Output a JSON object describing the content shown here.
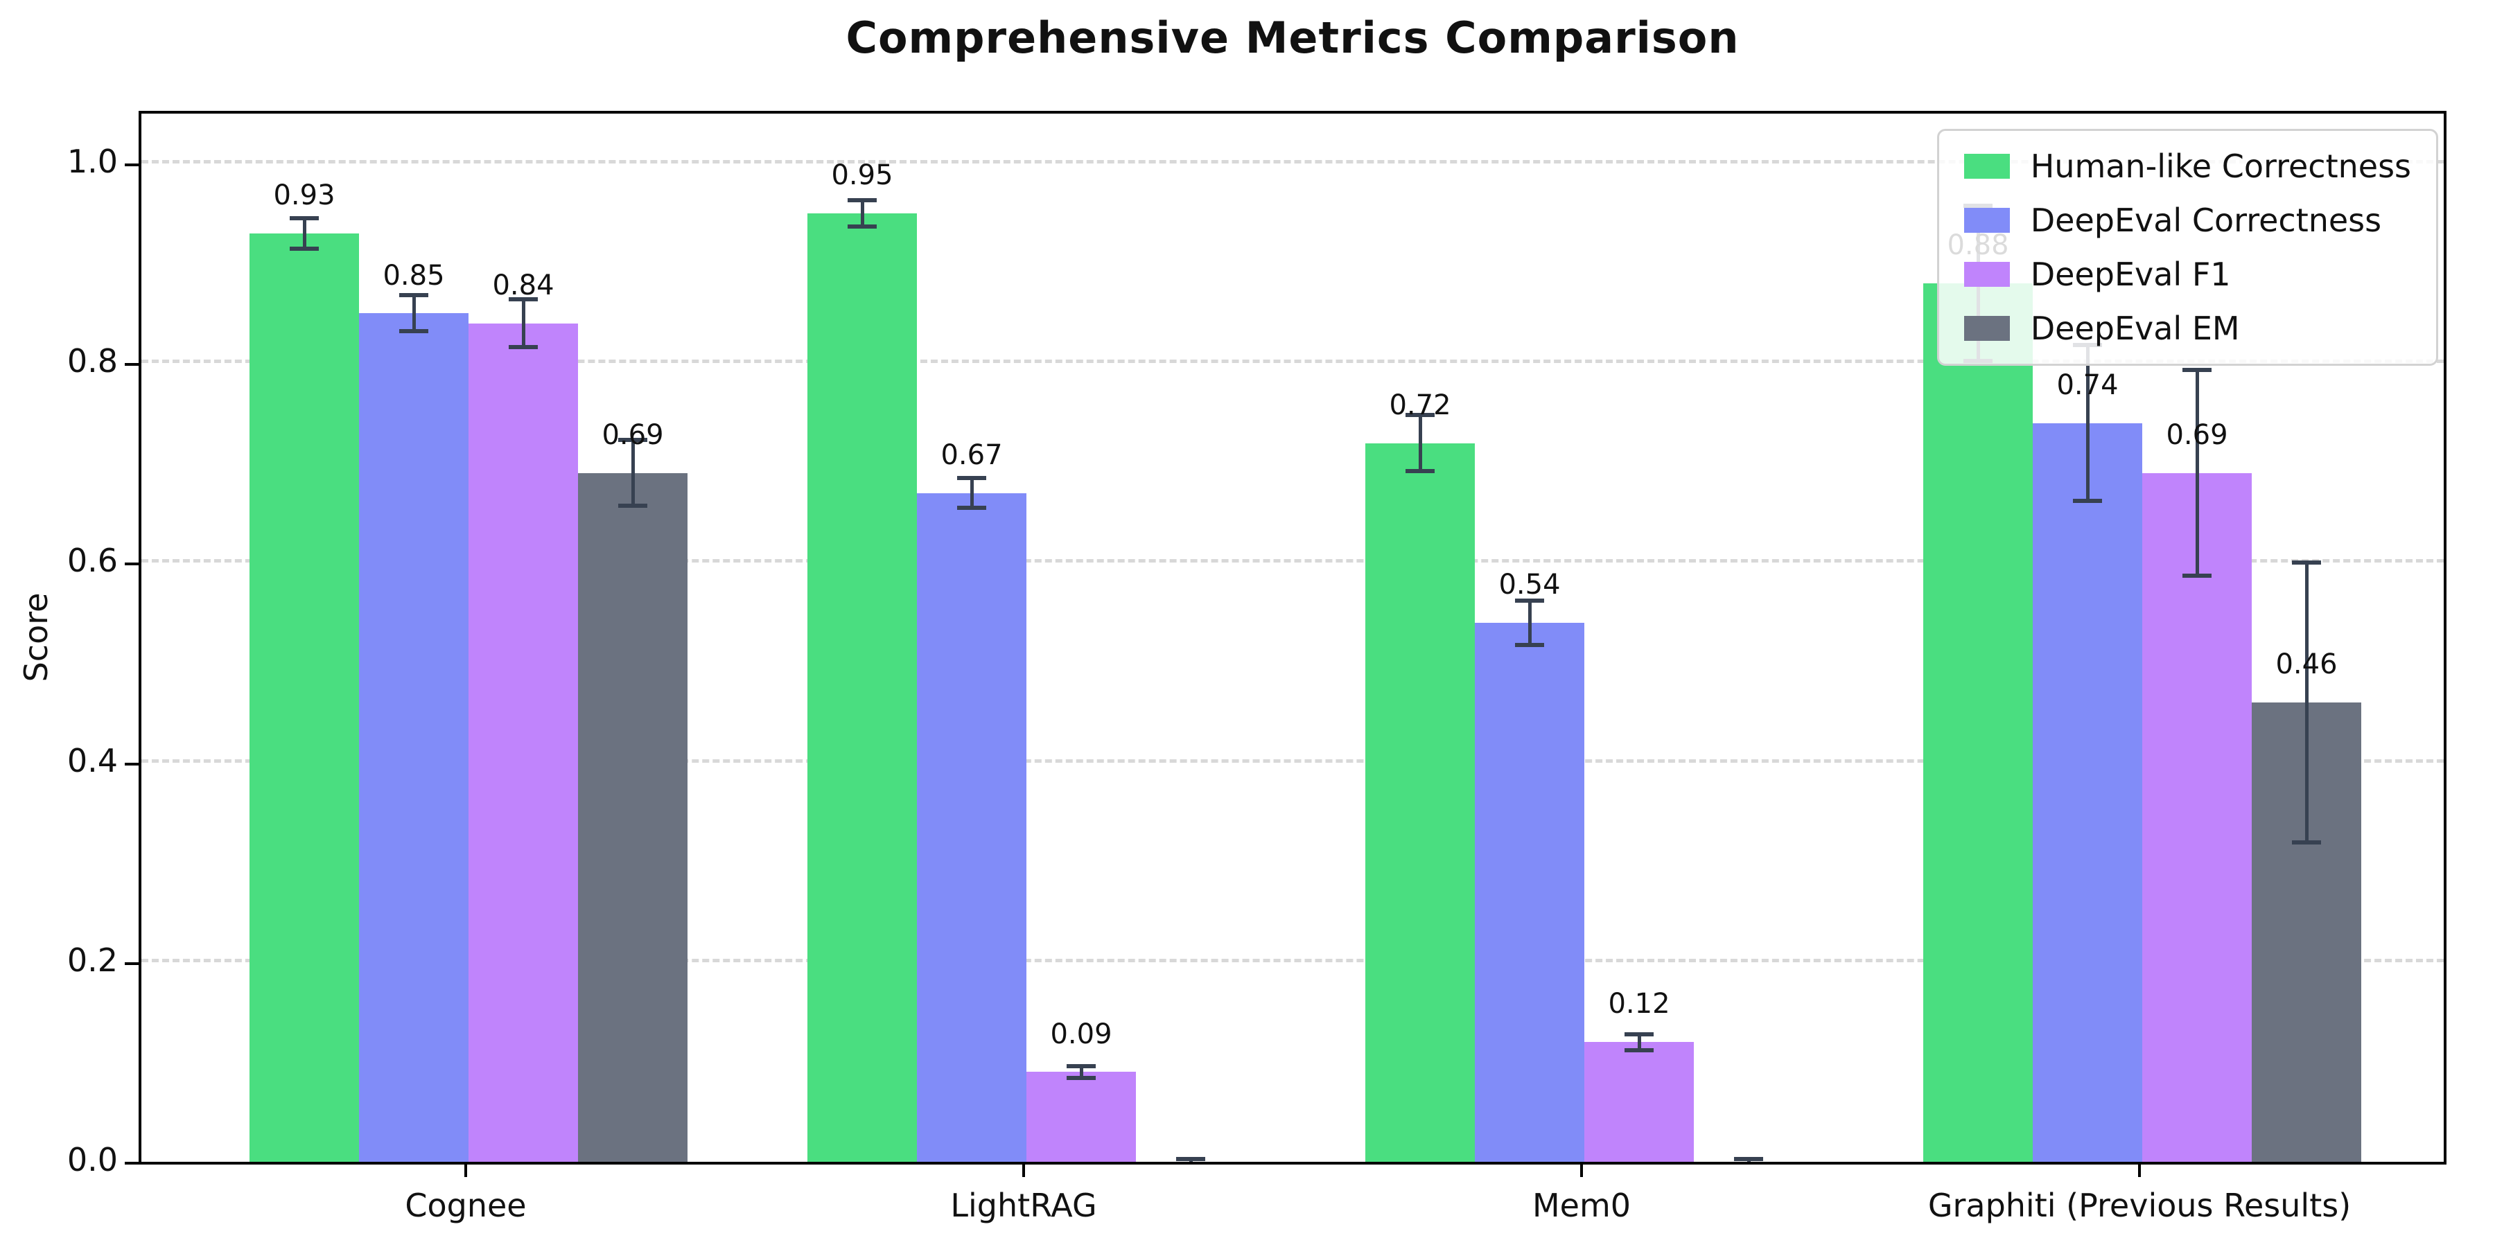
{
  "chart_data": {
    "type": "bar",
    "title": "Comprehensive Metrics Comparison",
    "xlabel": "",
    "ylabel": "Score",
    "ylim": [
      0,
      1.05
    ],
    "yticks": [
      0.0,
      0.2,
      0.4,
      0.6,
      0.8,
      1.0
    ],
    "ytick_labels": [
      "0.0",
      "0.2",
      "0.4",
      "0.6",
      "0.8",
      "1.0"
    ],
    "grid": "horizontal-dashed",
    "legend_position": "upper-right",
    "categories": [
      "Cognee",
      "LightRAG",
      "Mem0",
      "Graphiti (Previous Results)"
    ],
    "series": [
      {
        "name": "Human-like Correctness",
        "color": "#4ade80",
        "values": [
          0.93,
          0.95,
          0.72,
          0.88
        ],
        "errors": [
          0.015,
          0.013,
          0.028,
          0.078
        ],
        "labels": [
          "0.93",
          "0.95",
          "0.72",
          "0.88"
        ]
      },
      {
        "name": "DeepEval Correctness",
        "color": "#818cf8",
        "values": [
          0.85,
          0.67,
          0.54,
          0.74
        ],
        "errors": [
          0.018,
          0.015,
          0.022,
          0.078
        ],
        "labels": [
          "0.85",
          "0.67",
          "0.54",
          "0.74"
        ]
      },
      {
        "name": "DeepEval F1",
        "color": "#c084fc",
        "values": [
          0.84,
          0.09,
          0.12,
          0.69
        ],
        "errors": [
          0.024,
          0.006,
          0.008,
          0.103
        ],
        "labels": [
          "0.84",
          "0.09",
          "0.12",
          "0.69"
        ]
      },
      {
        "name": "DeepEval EM",
        "color": "#6b7280",
        "values": [
          0.69,
          0.0,
          0.0,
          0.46
        ],
        "errors": [
          0.033,
          0.003,
          0.003,
          0.14
        ],
        "labels": [
          "0.69",
          "",
          "",
          "0.46"
        ]
      }
    ],
    "error_bar_color": "#374151",
    "label_offset": 0.022
  }
}
